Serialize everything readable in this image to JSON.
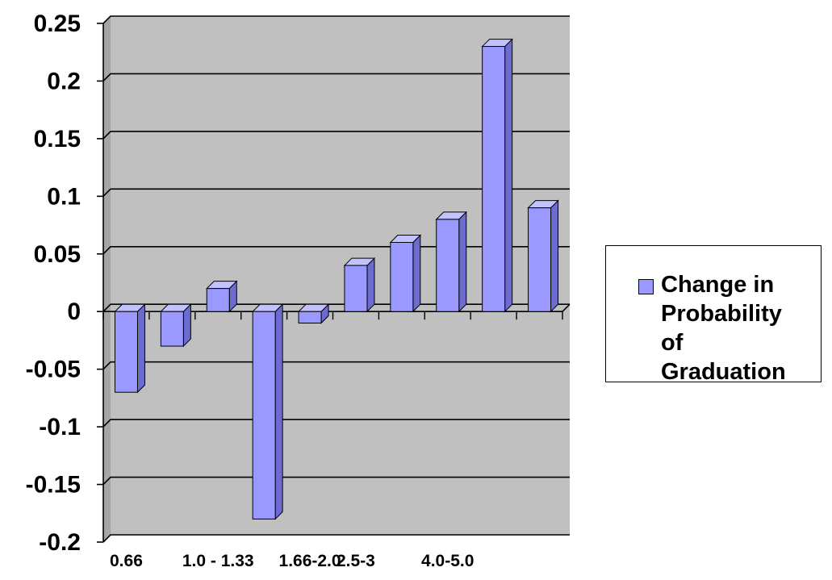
{
  "chart_data": {
    "type": "bar",
    "title": "",
    "xlabel": "",
    "ylabel": "",
    "categories": [
      "0.66",
      "",
      "1.0 - 1.33",
      "",
      "1.66-2.0",
      "2.5-3",
      "",
      "4.0-5.0",
      "",
      ""
    ],
    "series": [
      {
        "name": "Change in Probability of Graduation",
        "values": [
          -0.07,
          -0.03,
          0.02,
          -0.18,
          -0.01,
          0.04,
          0.06,
          0.08,
          0.23,
          0.09
        ]
      }
    ],
    "ylim": [
      -0.2,
      0.25
    ],
    "y_ticks": [
      "0.25",
      "0.2",
      "0.15",
      "0.1",
      "0.05",
      "0",
      "-0.05",
      "-0.1",
      "-0.15",
      "-0.2"
    ],
    "grid": true,
    "legend_position": "right",
    "colors": {
      "bar_front": "#9999ff",
      "bar_side": "#6b6bd0",
      "bar_top": "#c2c2ff",
      "plot_back": "#c0c0c0",
      "plot_wall": "#a6a6a6",
      "gridline": "#000000"
    }
  }
}
